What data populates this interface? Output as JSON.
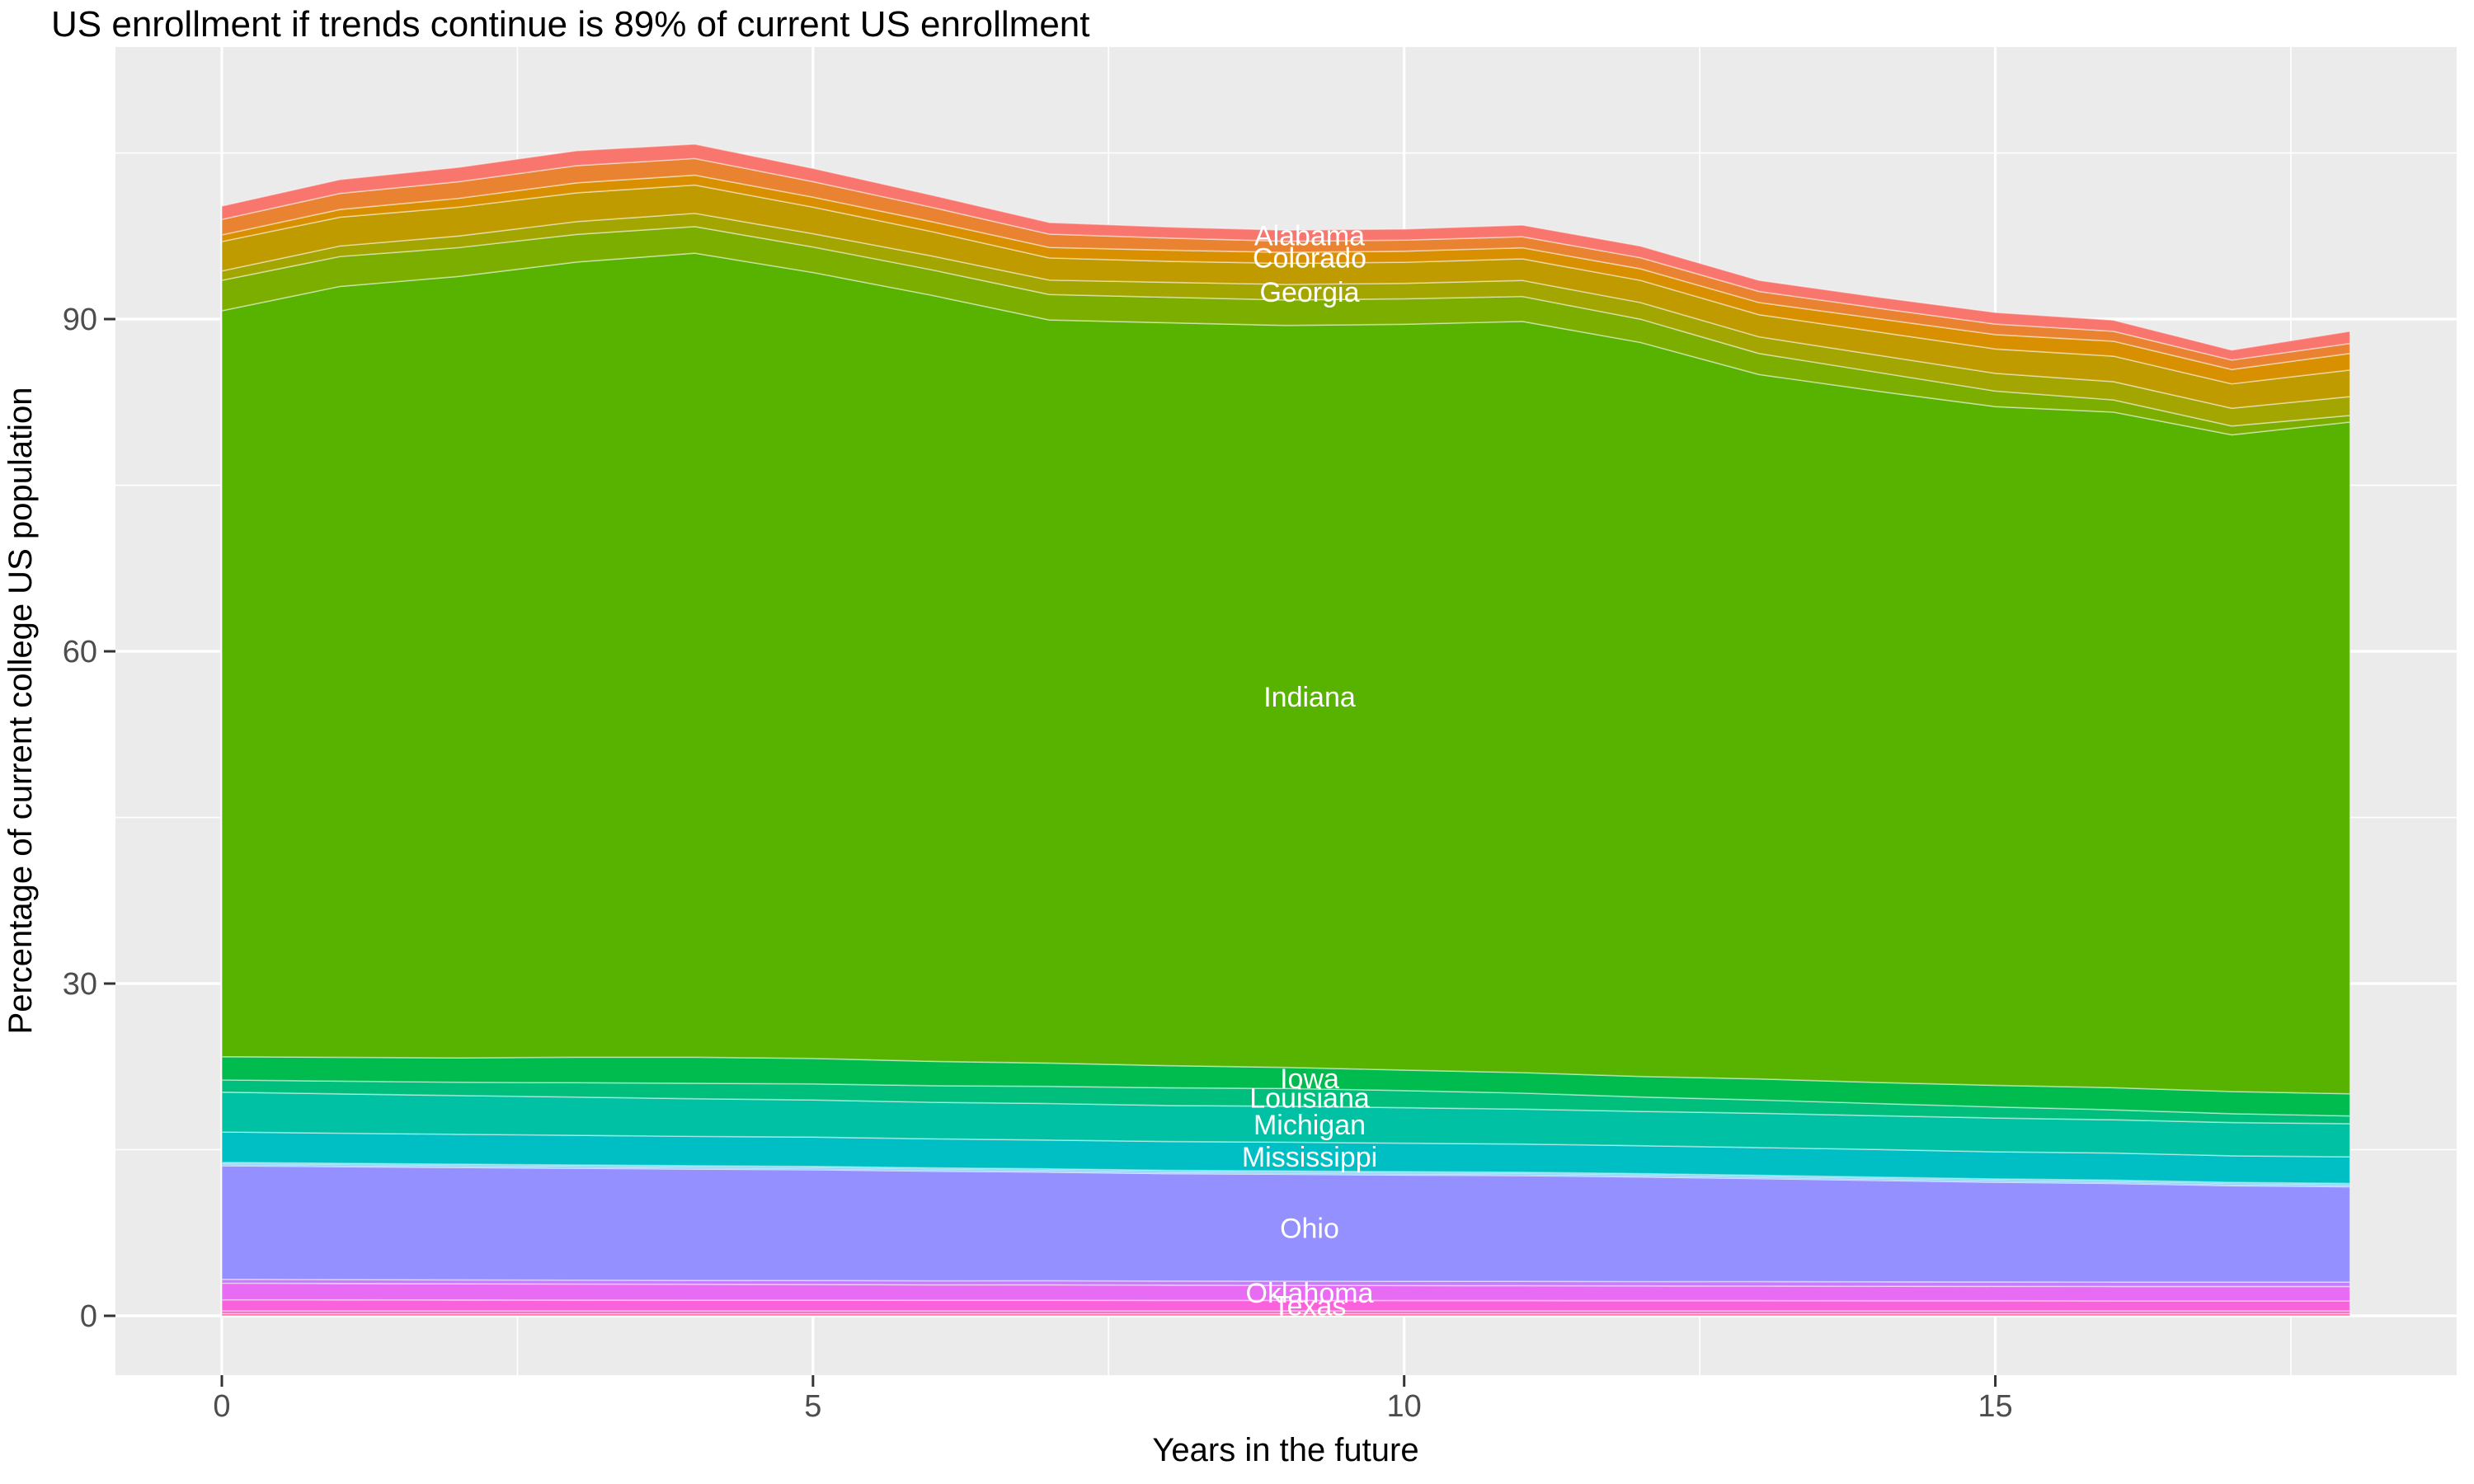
{
  "title": "US enrollment if trends continue is 89% of current US enrollment",
  "axes": {
    "x": {
      "label": "Years in the future",
      "major_ticks": [
        0,
        5,
        10,
        15
      ],
      "minor_ticks": [
        2.5,
        7.5,
        12.5,
        17.5
      ],
      "range": [
        0,
        18
      ]
    },
    "y": {
      "label": "Percentage of current college US population",
      "major_ticks": [
        0,
        30,
        60,
        90
      ],
      "minor_ticks": [
        15,
        45,
        75,
        105
      ],
      "range": [
        0,
        112
      ]
    }
  },
  "colors": {
    "panel_background": "#EBEBEB",
    "gridline": "#FFFFFF",
    "tick_label": "#4D4D4D",
    "title_text": "#000000",
    "series_label_text": "#FFFFFF"
  },
  "chart_data": {
    "type": "area",
    "stacked": true,
    "stack_order": "first_series_on_top",
    "title": "US enrollment if trends continue is 89% of current US enrollment",
    "xlabel": "Years in the future",
    "ylabel": "Percentage of current college US population",
    "x": [
      0,
      1,
      2,
      3,
      4,
      5,
      6,
      7,
      8,
      9,
      10,
      11,
      12,
      13,
      14,
      15,
      16,
      17,
      18
    ],
    "label_x": 9.2,
    "totals_note": "stack total starts at 100%, peaks ~105.8% near year 4, ends at 88.9% (~89%) at year 18",
    "series": [
      {
        "label": "Alabama",
        "color": "#F8766D",
        "values": [
          1.2,
          1.25,
          1.3,
          1.35,
          1.3,
          1.2,
          1.1,
          1.05,
          1.0,
          1.0,
          1.0,
          1.05,
          1.05,
          1.0,
          1.0,
          1.05,
          1.0,
          0.9,
          1.1
        ]
      },
      {
        "label": "",
        "color": "#EA8331",
        "values": [
          1.4,
          1.45,
          1.5,
          1.55,
          1.5,
          1.4,
          1.3,
          1.2,
          1.1,
          1.0,
          1.0,
          1.0,
          1.0,
          1.0,
          0.95,
          0.95,
          0.9,
          0.85,
          0.9
        ]
      },
      {
        "label": "Colorado",
        "color": "#D89000",
        "values": [
          0.6,
          0.7,
          0.8,
          0.9,
          0.9,
          0.9,
          0.9,
          0.95,
          1.0,
          1.0,
          1.0,
          1.0,
          1.05,
          1.1,
          1.2,
          1.3,
          1.35,
          1.3,
          1.5
        ]
      },
      {
        "label": "",
        "color": "#C09B00",
        "values": [
          2.65,
          2.6,
          2.6,
          2.6,
          2.55,
          2.4,
          2.2,
          2.0,
          1.9,
          1.9,
          1.9,
          1.95,
          2.0,
          2.0,
          2.1,
          2.2,
          2.3,
          2.2,
          2.4
        ]
      },
      {
        "label": "Georgia",
        "color": "#A3A500",
        "values": [
          0.85,
          0.95,
          1.05,
          1.15,
          1.2,
          1.2,
          1.25,
          1.3,
          1.35,
          1.4,
          1.4,
          1.45,
          1.5,
          1.5,
          1.55,
          1.6,
          1.65,
          1.6,
          1.7
        ]
      },
      {
        "label": "",
        "color": "#7CAE00",
        "values": [
          2.75,
          2.7,
          2.6,
          2.5,
          2.4,
          2.3,
          2.3,
          2.3,
          2.3,
          2.3,
          2.3,
          2.25,
          2.1,
          1.9,
          1.7,
          1.4,
          1.1,
          0.8,
          0.6
        ]
      },
      {
        "label": "Indiana",
        "color": "#58B300",
        "values": [
          67.35,
          69.61,
          70.56,
          71.8,
          72.6,
          70.97,
          69.18,
          67.1,
          67.08,
          67.0,
          67.34,
          67.83,
          66.28,
          63.61,
          62.43,
          61.29,
          61.0,
          59.3,
          60.65
        ]
      },
      {
        "label": "Iowa",
        "color": "#00BB4E",
        "values": [
          2.1,
          2.15,
          2.2,
          2.3,
          2.35,
          2.3,
          2.2,
          2.1,
          2.0,
          1.9,
          1.85,
          1.85,
          1.85,
          1.9,
          1.9,
          1.95,
          2.0,
          2.0,
          2.0
        ]
      },
      {
        "label": "Louisiana",
        "color": "#00BF7D",
        "values": [
          1.1,
          1.15,
          1.2,
          1.3,
          1.4,
          1.45,
          1.5,
          1.55,
          1.6,
          1.6,
          1.55,
          1.45,
          1.3,
          1.2,
          1.1,
          1.0,
          0.9,
          0.8,
          0.7
        ]
      },
      {
        "label": "Michigan",
        "color": "#00C1A3",
        "values": [
          3.6,
          3.55,
          3.5,
          3.45,
          3.4,
          3.35,
          3.3,
          3.3,
          3.25,
          3.25,
          3.2,
          3.15,
          3.1,
          3.1,
          3.05,
          3.05,
          3.0,
          3.0,
          3.0
        ]
      },
      {
        "label": "Mississippi",
        "color": "#00BFC4",
        "values": [
          2.75,
          2.72,
          2.7,
          2.68,
          2.65,
          2.65,
          2.62,
          2.6,
          2.6,
          2.6,
          2.58,
          2.55,
          2.52,
          2.5,
          2.5,
          2.45,
          2.45,
          2.4,
          2.4
        ]
      },
      {
        "label": "",
        "color": "#00BADE",
        "values": [
          0.1,
          0.1,
          0.1,
          0.1,
          0.1,
          0.1,
          0.1,
          0.1,
          0.1,
          0.1,
          0.1,
          0.1,
          0.1,
          0.1,
          0.1,
          0.1,
          0.1,
          0.1,
          0.1
        ]
      },
      {
        "label": "",
        "color": "#00B0F6",
        "values": [
          0.1,
          0.1,
          0.1,
          0.1,
          0.1,
          0.1,
          0.1,
          0.1,
          0.1,
          0.1,
          0.1,
          0.1,
          0.1,
          0.1,
          0.1,
          0.1,
          0.1,
          0.1,
          0.1
        ]
      },
      {
        "label": "",
        "color": "#35A2FF",
        "values": [
          0.1,
          0.1,
          0.1,
          0.1,
          0.1,
          0.1,
          0.1,
          0.1,
          0.1,
          0.1,
          0.1,
          0.1,
          0.1,
          0.1,
          0.1,
          0.1,
          0.1,
          0.1,
          0.1
        ]
      },
      {
        "label": "Ohio",
        "color": "#9590FF",
        "values": [
          10.25,
          10.2,
          10.15,
          10.1,
          10.05,
          10.0,
          9.9,
          9.8,
          9.7,
          9.65,
          9.6,
          9.55,
          9.45,
          9.3,
          9.15,
          9.0,
          8.9,
          8.7,
          8.6
        ]
      },
      {
        "label": "",
        "color": "#C77CFF",
        "values": [
          0.35,
          0.35,
          0.35,
          0.35,
          0.35,
          0.36,
          0.36,
          0.37,
          0.37,
          0.38,
          0.38,
          0.39,
          0.39,
          0.4,
          0.4,
          0.4,
          0.4,
          0.4,
          0.4
        ]
      },
      {
        "label": "Oklahoma",
        "color": "#E76BF3",
        "values": [
          1.5,
          1.48,
          1.46,
          1.45,
          1.44,
          1.42,
          1.4,
          1.4,
          1.38,
          1.36,
          1.35,
          1.34,
          1.33,
          1.32,
          1.31,
          1.3,
          1.3,
          1.3,
          1.3
        ]
      },
      {
        "label": "Texas",
        "color": "#FA62DB",
        "values": [
          1.0,
          0.99,
          0.98,
          0.97,
          0.96,
          0.96,
          0.95,
          0.95,
          0.94,
          0.94,
          0.93,
          0.93,
          0.92,
          0.92,
          0.91,
          0.91,
          0.9,
          0.9,
          0.9
        ]
      },
      {
        "label": "",
        "color": "#FF61C3",
        "values": [
          0.25,
          0.25,
          0.25,
          0.25,
          0.25,
          0.25,
          0.25,
          0.25,
          0.25,
          0.25,
          0.25,
          0.25,
          0.25,
          0.25,
          0.25,
          0.25,
          0.25,
          0.25,
          0.25
        ]
      },
      {
        "label": "",
        "color": "#FF689F",
        "values": [
          0.2,
          0.2,
          0.2,
          0.2,
          0.2,
          0.2,
          0.2,
          0.2,
          0.2,
          0.2,
          0.2,
          0.2,
          0.2,
          0.2,
          0.2,
          0.2,
          0.2,
          0.2,
          0.2
        ]
      }
    ]
  }
}
